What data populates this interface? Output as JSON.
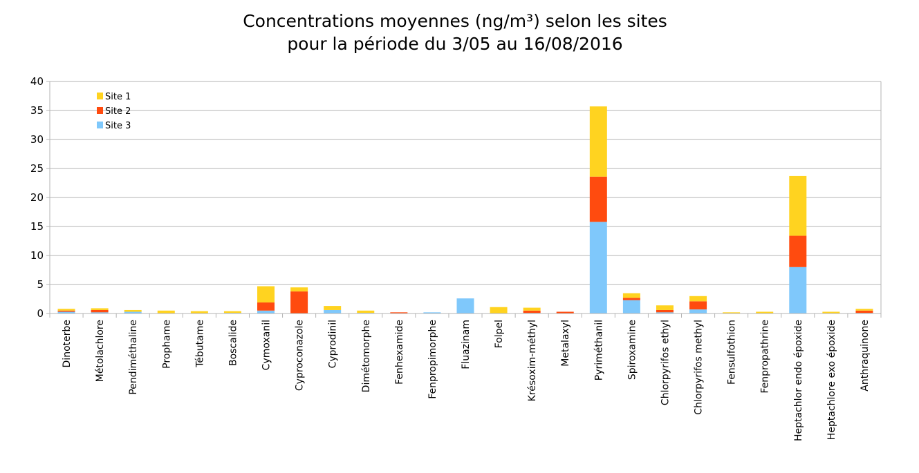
{
  "chart_data": {
    "type": "bar",
    "stacked": true,
    "title": [
      "Concentrations moyennes (ng/m³) selon les sites",
      "pour la période du 3/05 au 16/08/2016"
    ],
    "ylim": [
      0,
      40
    ],
    "yticks": [
      0,
      5,
      10,
      15,
      20,
      25,
      30,
      35,
      40
    ],
    "grid": true,
    "legend_position": "top-left",
    "categories": [
      "Dinoterbe",
      "Métolachlore",
      "Pendiméthaline",
      "Prophame",
      "Tébutame",
      "Boscalide",
      "Cymoxanil",
      "Cyproconazole",
      "Cyprodinil",
      "Dimétomorphe",
      "Fenhexamide",
      "Fenpropimorphe",
      "Fluazinam",
      "Folpel",
      "Krésoxim-méthyl",
      "Metalaxyl",
      "Pyriméthanil",
      "Spiroxamine",
      "Chlorpyrifos ethyl",
      "Chlorpyrifos methyl",
      "Fensulfothion",
      "Fenpropathrine",
      "Heptachlor endo époxide",
      "Heptachlore exo époxide",
      "Anthraquinone"
    ],
    "series": [
      {
        "name": "Site 3",
        "color": "#7fc8fb",
        "values": [
          0.3,
          0.2,
          0.3,
          0,
          0,
          0.1,
          0.5,
          0,
          0.6,
          0.1,
          0,
          0.2,
          2.6,
          0,
          0.1,
          0,
          15.8,
          2.3,
          0.2,
          0.7,
          0,
          0,
          8.0,
          0,
          0.1
        ]
      },
      {
        "name": "Site 2",
        "color": "#ff4b0f",
        "values": [
          0.2,
          0.4,
          0,
          0,
          0,
          0,
          1.4,
          3.8,
          0,
          0,
          0.2,
          0,
          0,
          0,
          0.4,
          0.3,
          7.8,
          0.4,
          0.4,
          1.4,
          0,
          0,
          5.4,
          0,
          0.4
        ]
      },
      {
        "name": "Site 1",
        "color": "#ffd320",
        "values": [
          0.3,
          0.3,
          0.3,
          0.5,
          0.4,
          0.3,
          2.8,
          0.7,
          0.7,
          0.4,
          0,
          0,
          0,
          1.1,
          0.5,
          0,
          12.1,
          0.8,
          0.8,
          0.9,
          0.2,
          0.3,
          10.3,
          0.3,
          0.3
        ]
      }
    ]
  },
  "legend": [
    {
      "label": "Site 1",
      "color": "#ffd320"
    },
    {
      "label": "Site 2",
      "color": "#ff4b0f"
    },
    {
      "label": "Site 3",
      "color": "#7fc8fb"
    }
  ]
}
